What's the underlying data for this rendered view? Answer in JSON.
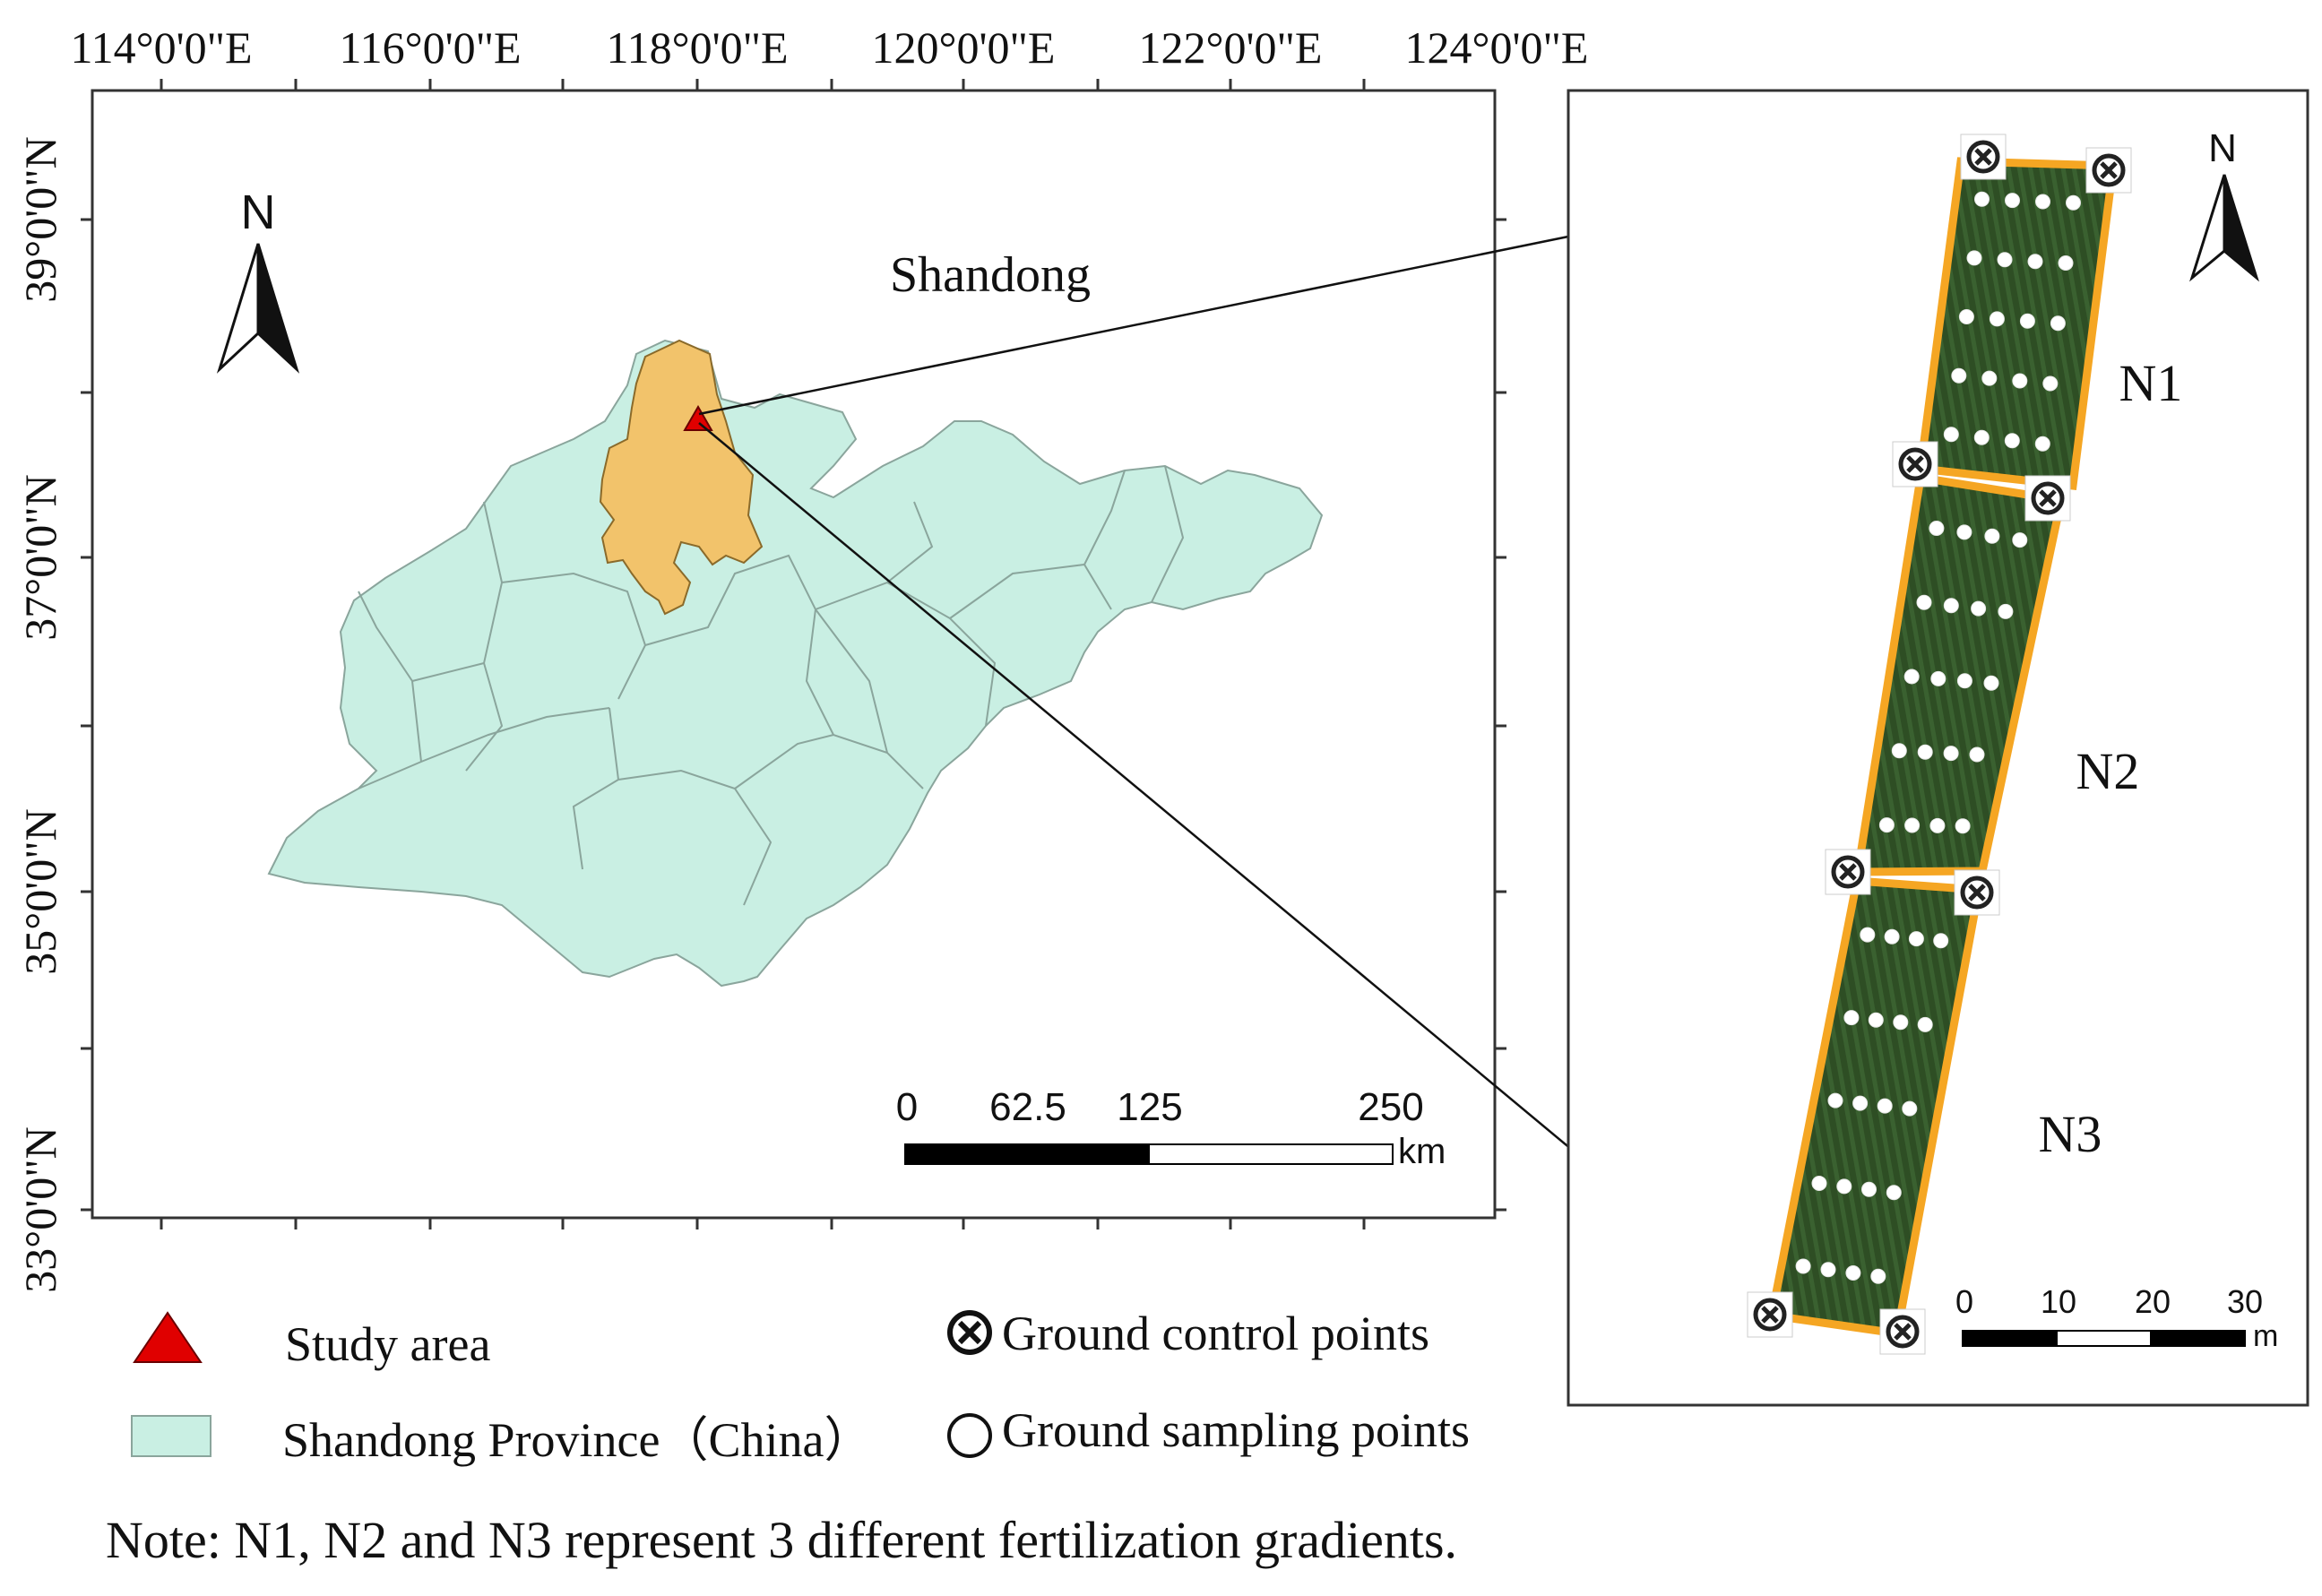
{
  "map": {
    "region_label": "Shandong",
    "north_label": "N",
    "lon_labels": [
      "114°0'0\"E",
      "116°0'0\"E",
      "118°0'0\"E",
      "120°0'0\"E",
      "122°0'0\"E",
      "124°0'0\"E"
    ],
    "lat_labels": [
      "39°0'0\"N",
      "37°0'0\"N",
      "35°0'0\"N",
      "33°0'0\"N"
    ],
    "scale": {
      "ticks": [
        "0",
        "62.5",
        "125",
        "250"
      ],
      "unit": "km"
    }
  },
  "inset": {
    "north_label": "N",
    "plots": [
      "N1",
      "N2",
      "N3"
    ],
    "scale": {
      "ticks": [
        "0",
        "10",
        "20",
        "30"
      ],
      "unit": "m"
    }
  },
  "legend": {
    "study_area": "Study area",
    "province": "Shandong Province（China）",
    "control_points": "Ground control points",
    "sampling_points": "Ground sampling points"
  },
  "note": "Note: N1, N2 and N3 represent 3 different fertilization gradients.",
  "colors": {
    "province_fill": "#c9efe3",
    "study_region_fill": "#f2c36b",
    "study_marker": "#e00000",
    "plot_border": "#f5a623",
    "field_green": "#2b4a22"
  }
}
